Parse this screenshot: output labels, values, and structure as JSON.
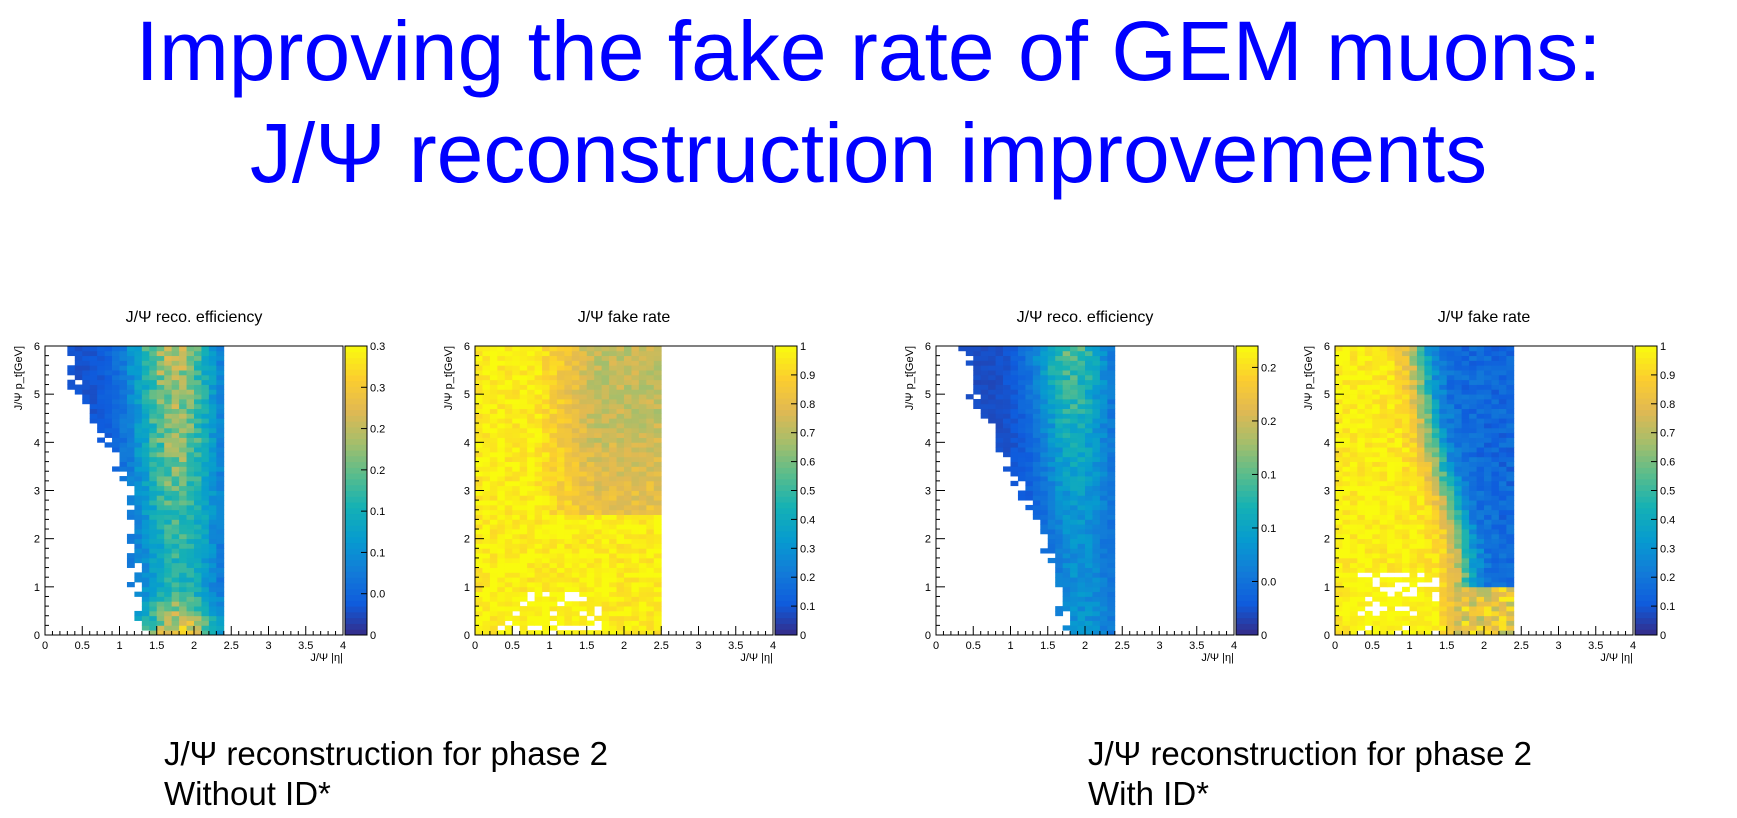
{
  "title": {
    "line1": "Improving the fake rate of GEM muons:",
    "line2": "J/Ψ reconstruction improvements"
  },
  "colors": {
    "title": "#0000ff"
  },
  "captions": [
    {
      "line1": "J/Ψ reconstruction for phase 2",
      "line2": "Without ID*"
    },
    {
      "line1": "J/Ψ reconstruction for phase 2",
      "line2": "With ID*"
    }
  ],
  "chart_data": [
    {
      "type": "heatmap",
      "title": "J/Ψ reco. efficiency",
      "xlabel": "J/Ψ |η|",
      "ylabel": "J/Ψ p_t[GeV]",
      "xlim": [
        0,
        4
      ],
      "ylim": [
        0,
        6
      ],
      "xticks": [
        "0",
        "0.5",
        "1",
        "1.5",
        "2",
        "2.5",
        "3",
        "3.5",
        "4"
      ],
      "yticks": [
        "0",
        "1",
        "2",
        "3",
        "4",
        "5",
        "6"
      ],
      "zlim": [
        0,
        0.35
      ],
      "zticks": [
        "0",
        "0.0",
        "0.1",
        "0.1",
        "0.2",
        "0.2",
        "0.3",
        "0.3"
      ],
      "palette": "kBird",
      "bins": {
        "nx": 40,
        "ny": 60
      },
      "region": {
        "eta_max": 2.4,
        "eta_min_by_pt": [
          [
            0,
            1.4
          ],
          [
            1,
            1.27
          ],
          [
            2,
            1.23
          ],
          [
            3,
            1.18
          ],
          [
            4,
            0.88
          ],
          [
            5,
            0.48
          ],
          [
            6,
            0.38
          ]
        ]
      },
      "level_model": {
        "center_eta_by_pt": [
          [
            0,
            1.8
          ],
          [
            3,
            1.78
          ],
          [
            6,
            1.72
          ]
        ],
        "width": 0.55,
        "peak_by_pt": [
          [
            0,
            0.3
          ],
          [
            1,
            0.16
          ],
          [
            2,
            0.17
          ],
          [
            3,
            0.2
          ],
          [
            4,
            0.22
          ],
          [
            5,
            0.23
          ],
          [
            6,
            0.25
          ]
        ],
        "floor": 0.03
      }
    },
    {
      "type": "heatmap",
      "title": "J/Ψ fake rate",
      "xlabel": "J/Ψ |η|",
      "ylabel": "J/Ψ p_t[GeV]",
      "xlim": [
        0,
        4
      ],
      "ylim": [
        0,
        6
      ],
      "xticks": [
        "0",
        "0.5",
        "1",
        "1.5",
        "2",
        "2.5",
        "3",
        "3.5",
        "4"
      ],
      "yticks": [
        "0",
        "1",
        "2",
        "3",
        "4",
        "5",
        "6"
      ],
      "zlim": [
        0,
        1
      ],
      "zticks": [
        "0",
        "0.1",
        "0.2",
        "0.3",
        "0.4",
        "0.5",
        "0.6",
        "0.7",
        "0.8",
        "0.9",
        "1"
      ],
      "palette": "kBird",
      "bins": {
        "nx": 40,
        "ny": 60
      },
      "region": {
        "eta_max": 2.45
      },
      "level_model": {
        "base": 0.97,
        "drop": 0.25,
        "drop_start_eta": 0.8,
        "drop_full_eta": 1.6,
        "drop_min_pt": 2.5
      }
    },
    {
      "type": "heatmap",
      "title": "J/Ψ reco. efficiency",
      "xlabel": "J/Ψ |η|",
      "ylabel": "J/Ψ p_t[GeV]",
      "xlim": [
        0,
        4
      ],
      "ylim": [
        0,
        6
      ],
      "xticks": [
        "0",
        "0.5",
        "1",
        "1.5",
        "2",
        "2.5",
        "3",
        "3.5",
        "4"
      ],
      "yticks": [
        "0",
        "1",
        "2",
        "3",
        "4",
        "5",
        "6"
      ],
      "zlim": [
        0,
        0.27
      ],
      "zticks": [
        "0",
        "0.0",
        "0.1",
        "0.1",
        "0.2",
        "0.2"
      ],
      "palette": "kBird",
      "bins": {
        "nx": 40,
        "ny": 60
      },
      "region": {
        "eta_max": 2.38,
        "eta_min_by_pt": [
          [
            0,
            1.8
          ],
          [
            1,
            1.72
          ],
          [
            2,
            1.48
          ],
          [
            3,
            1.2
          ],
          [
            4,
            0.9
          ],
          [
            5,
            0.55
          ],
          [
            6,
            0.45
          ]
        ]
      },
      "level_model": {
        "center_eta_by_pt": [
          [
            0,
            2.0
          ],
          [
            3,
            1.9
          ],
          [
            6,
            1.8
          ]
        ],
        "width": 0.5,
        "peak_by_pt": [
          [
            0,
            0.08
          ],
          [
            2,
            0.08
          ],
          [
            4,
            0.11
          ],
          [
            6,
            0.15
          ]
        ],
        "floor": 0.02
      }
    },
    {
      "type": "heatmap",
      "title": "J/Ψ fake rate",
      "xlabel": "J/Ψ |η|",
      "ylabel": "J/Ψ p_t[GeV]",
      "xlim": [
        0,
        4
      ],
      "ylim": [
        0,
        6
      ],
      "xticks": [
        "0",
        "0.5",
        "1",
        "1.5",
        "2",
        "2.5",
        "3",
        "3.5",
        "4"
      ],
      "yticks": [
        "0",
        "1",
        "2",
        "3",
        "4",
        "5",
        "6"
      ],
      "zlim": [
        0,
        1
      ],
      "zticks": [
        "0",
        "0.1",
        "0.2",
        "0.3",
        "0.4",
        "0.5",
        "0.6",
        "0.7",
        "0.8",
        "0.9",
        "1"
      ],
      "palette": "kBird",
      "bins": {
        "nx": 40,
        "ny": 60
      },
      "region": {
        "eta_max": 2.4
      },
      "level_model": {
        "transition_eta_by_pt": [
          [
            0,
            1.8
          ],
          [
            2,
            1.7
          ],
          [
            4,
            1.3
          ],
          [
            6,
            1.1
          ]
        ],
        "high": 0.97,
        "low": 0.15,
        "width": 0.12
      }
    }
  ]
}
